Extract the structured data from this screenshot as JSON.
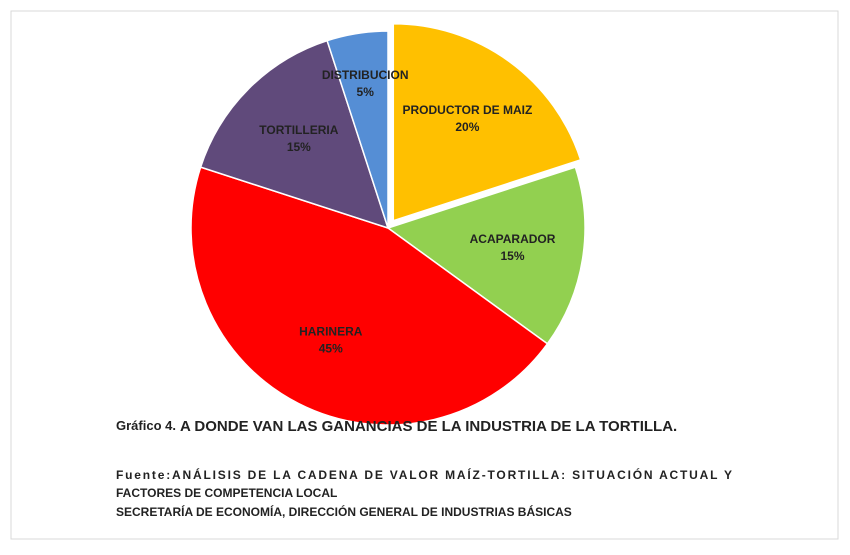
{
  "chart_data": {
    "type": "pie",
    "categories": [
      "PRODUCTOR DE MAIZ",
      "ACAPARADOR",
      "HARINERA",
      "TORTILLERIA",
      "DISTRIBUCION"
    ],
    "values": [
      20,
      15,
      45,
      15,
      5
    ],
    "value_labels": [
      "20%",
      "15%",
      "45%",
      "15%",
      "5%"
    ],
    "colors": [
      "#FFC000",
      "#92D050",
      "#FF0000",
      "#604A7B",
      "#558ED5"
    ],
    "exploded": [
      true,
      false,
      false,
      false,
      false
    ],
    "caption_label": "Gráfico 4.",
    "caption_title": "A DONDE VAN LAS GANANCIAS DE LA INDUSTRIA DE LA TORTILLA.",
    "source": [
      "Fuente:ANÁLISIS DE LA CADENA DE VALOR MAÍZ-TORTILLA: SITUACIÓN ACTUAL Y",
      "FACTORES DE COMPETENCIA LOCAL",
      "SECRETARÍA DE ECONOMÍA, DIRECCIÓN GENERAL DE INDUSTRIAS BÁSICAS"
    ]
  }
}
